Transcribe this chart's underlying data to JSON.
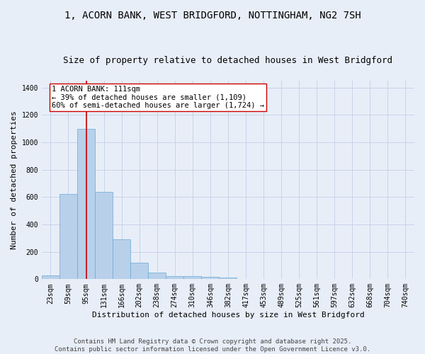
{
  "title_line1": "1, ACORN BANK, WEST BRIDGFORD, NOTTINGHAM, NG2 7SH",
  "title_line2": "Size of property relative to detached houses in West Bridgford",
  "xlabel": "Distribution of detached houses by size in West Bridgford",
  "ylabel": "Number of detached properties",
  "bin_labels": [
    "23sqm",
    "59sqm",
    "95sqm",
    "131sqm",
    "166sqm",
    "202sqm",
    "238sqm",
    "274sqm",
    "310sqm",
    "346sqm",
    "382sqm",
    "417sqm",
    "453sqm",
    "489sqm",
    "525sqm",
    "561sqm",
    "597sqm",
    "632sqm",
    "668sqm",
    "704sqm",
    "740sqm"
  ],
  "bar_values": [
    28,
    620,
    1100,
    640,
    290,
    120,
    50,
    25,
    20,
    15,
    10,
    0,
    0,
    0,
    0,
    0,
    0,
    0,
    0,
    0,
    0
  ],
  "bar_color": "#b8d0ea",
  "bar_edge_color": "#6aaad4",
  "grid_color": "#c8d4e8",
  "bg_color": "#e8eef8",
  "vline_x": 2,
  "vline_color": "#cc0000",
  "annotation_text": "1 ACORN BANK: 111sqm\n← 39% of detached houses are smaller (1,109)\n60% of semi-detached houses are larger (1,724) →",
  "annotation_box_color": "#ffffff",
  "annotation_box_edge": "#cc0000",
  "ylim": [
    0,
    1450
  ],
  "yticks": [
    0,
    200,
    400,
    600,
    800,
    1000,
    1200,
    1400
  ],
  "footer_line1": "Contains HM Land Registry data © Crown copyright and database right 2025.",
  "footer_line2": "Contains public sector information licensed under the Open Government Licence v3.0.",
  "title_fontsize": 10,
  "subtitle_fontsize": 9,
  "axis_label_fontsize": 8,
  "tick_fontsize": 7,
  "annotation_fontsize": 7.5,
  "footer_fontsize": 6.5
}
